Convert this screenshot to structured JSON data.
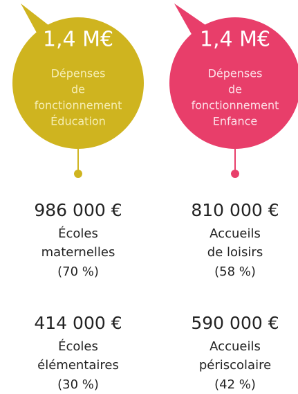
{
  "columns": [
    {
      "bubble": {
        "amount": "1,4 M€",
        "label": [
          "Dépenses",
          "de",
          "fonctionnement",
          "Éducation"
        ]
      },
      "items": [
        {
          "amount": "986 000 €",
          "label": [
            "Écoles",
            "maternelles"
          ],
          "share": "(70 %)"
        },
        {
          "amount": "414 000 €",
          "label": [
            "Écoles",
            "élémentaires"
          ],
          "share": "(30 %)"
        }
      ]
    },
    {
      "bubble": {
        "amount": "1,4 M€",
        "label": [
          "Dépenses",
          "de",
          "fonctionnement",
          "Enfance"
        ]
      },
      "items": [
        {
          "amount": "810 000 €",
          "label": [
            "Accueils",
            "de loisirs"
          ],
          "share": "(58 %)"
        },
        {
          "amount": "590 000 €",
          "label": [
            "Accueils",
            "périscolaire"
          ],
          "share": "(42 %)"
        }
      ]
    }
  ]
}
